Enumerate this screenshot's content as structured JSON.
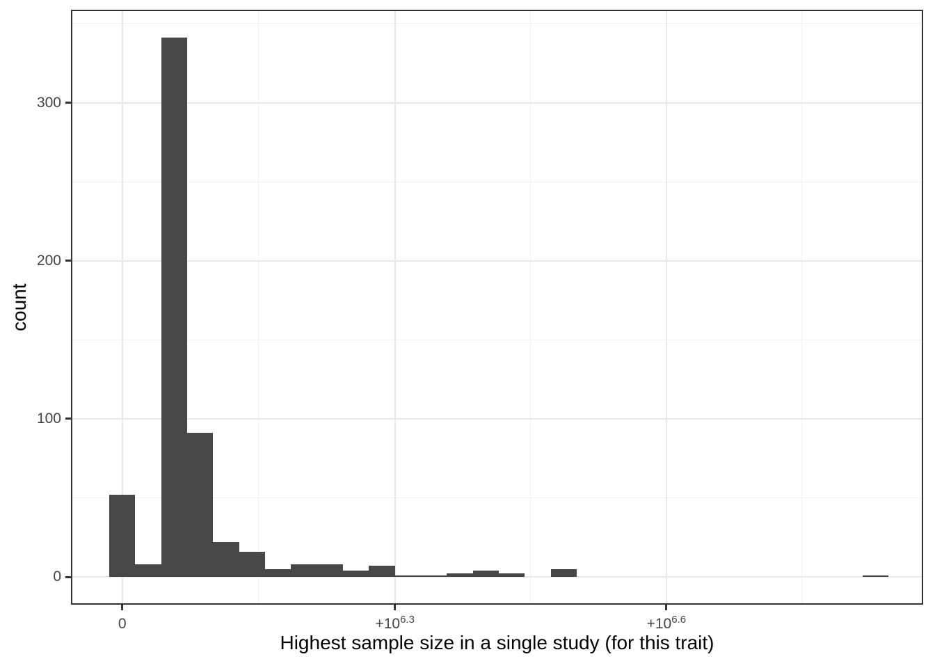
{
  "chart_data": {
    "type": "bar",
    "subtype": "histogram",
    "title": "",
    "xlabel": "Highest sample size in a single study (for this trait)",
    "ylabel": "count",
    "bar_color": "#474747",
    "bin_width": 190000,
    "first_bin_center": 0,
    "counts": [
      52,
      8,
      341,
      91,
      22,
      16,
      5,
      8,
      8,
      4,
      7,
      1,
      1,
      2,
      4,
      2,
      0,
      5,
      0,
      0,
      0,
      0,
      0,
      0,
      0,
      0,
      0,
      0,
      0,
      1
    ],
    "x_ticks": [
      {
        "value": 0,
        "base": "0",
        "sup": ""
      },
      {
        "value": 1995262,
        "base": "+10",
        "sup": "6.3"
      },
      {
        "value": 3981072,
        "base": "+10",
        "sup": "6.6"
      }
    ],
    "x_minor_ticks": [
      997631,
      2988167,
      4973977
    ],
    "y_ticks": [
      {
        "value": 0,
        "label": "0"
      },
      {
        "value": 100,
        "label": "100"
      },
      {
        "value": 200,
        "label": "200"
      },
      {
        "value": 300,
        "label": "300"
      }
    ],
    "y_minor_ticks": [
      50,
      150,
      250,
      350
    ],
    "xlim": [
      -375000,
      5860000
    ],
    "ylim": [
      -17.6,
      358.8
    ],
    "grid": "major+minor",
    "legend": "none",
    "colors": {
      "grid_major": "#E8E8E8",
      "grid_minor": "#F2F2F2",
      "panel_border": "#333333",
      "tick_mark": "#333333",
      "tick_label": "#444444",
      "axis_title": "#000000",
      "background": "#FFFFFF"
    }
  }
}
